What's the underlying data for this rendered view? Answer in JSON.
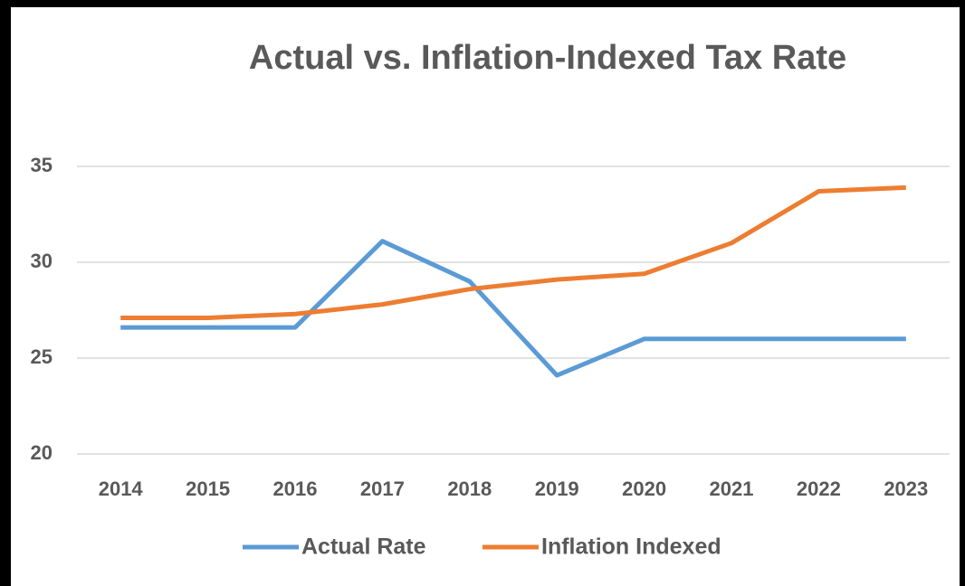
{
  "chart_data": {
    "type": "line",
    "title": "Actual vs. Inflation-Indexed Tax Rate",
    "categories": [
      "2014",
      "2015",
      "2016",
      "2017",
      "2018",
      "2019",
      "2020",
      "2021",
      "2022",
      "2023"
    ],
    "series": [
      {
        "name": "Actual Rate",
        "color": "#5b9bd5",
        "values": [
          26.6,
          26.6,
          26.6,
          31.1,
          29.0,
          24.1,
          26.0,
          26.0,
          26.0,
          26.0
        ]
      },
      {
        "name": "Inflation Indexed",
        "color": "#ed7d31",
        "values": [
          27.1,
          27.1,
          27.3,
          27.8,
          28.6,
          29.1,
          29.4,
          31.0,
          33.7,
          33.9
        ]
      }
    ],
    "ylim": [
      20,
      35
    ],
    "yticks": [
      20,
      25,
      30,
      35
    ],
    "grid": true,
    "legend": "bottom"
  }
}
